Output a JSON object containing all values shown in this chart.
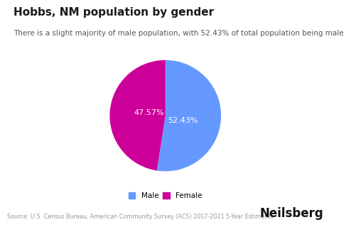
{
  "title": "Hobbs, NM population by gender",
  "subtitle": "There is a slight majority of male population, with 52.43% of total population being male",
  "slices": [
    52.43,
    47.57
  ],
  "labels": [
    "52.43%",
    "47.57%"
  ],
  "colors": [
    "#6699ff",
    "#cc0099"
  ],
  "legend_labels": [
    "Male",
    "Female"
  ],
  "source": "Source: U.S. Census Bureau, American Community Survey (ACS) 2017-2021 5-Year Estimates",
  "brand": "Neilsberg",
  "background_color": "#ffffff",
  "text_color_white": "#ffffff",
  "title_fontsize": 11,
  "subtitle_fontsize": 7.5,
  "label_fontsize": 8,
  "legend_fontsize": 7.5,
  "source_fontsize": 5.8,
  "brand_fontsize": 12
}
